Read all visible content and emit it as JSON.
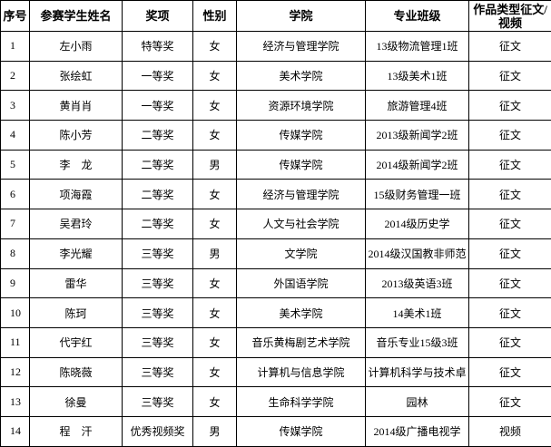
{
  "table": {
    "header": [
      "序号",
      "参赛学生姓名",
      "奖项",
      "性别",
      "学院",
      "专业班级",
      "作品类型征文/视频"
    ],
    "rows": [
      [
        "1",
        "左小雨",
        "特等奖",
        "女",
        "经济与管理学院",
        "13级物流管理1班",
        "征文"
      ],
      [
        "2",
        "张绘虹",
        "一等奖",
        "女",
        "美术学院",
        "13级美术1班",
        "征文"
      ],
      [
        "3",
        "黄肖肖",
        "一等奖",
        "女",
        "资源环境学院",
        "旅游管理4班",
        "征文"
      ],
      [
        "4",
        "陈小芳",
        "二等奖",
        "女",
        "传媒学院",
        "2013级新闻学2班",
        "征文"
      ],
      [
        "5",
        "李　龙",
        "二等奖",
        "男",
        "传媒学院",
        "2014级新闻学2班",
        "征文"
      ],
      [
        "6",
        "项海霞",
        "二等奖",
        "女",
        "经济与管理学院",
        "15级财务管理一班",
        "征文"
      ],
      [
        "7",
        "吴君玲",
        "二等奖",
        "女",
        "人文与社会学院",
        "2014级历史学",
        "征文"
      ],
      [
        "8",
        "李光耀",
        "三等奖",
        "男",
        "文学院",
        "2014级汉国教非师范",
        "征文"
      ],
      [
        "9",
        "雷华",
        "三等奖",
        "女",
        "外国语学院",
        "2013级英语3班",
        "征文"
      ],
      [
        "10",
        "陈珂",
        "三等奖",
        "女",
        "美术学院",
        "14美术1班",
        "征文"
      ],
      [
        "11",
        "代宇红",
        "三等奖",
        "女",
        "音乐黄梅剧艺术学院",
        "音乐专业15级3班",
        "征文"
      ],
      [
        "12",
        "陈晓薇",
        "三等奖",
        "女",
        "计算机与信息学院",
        "计算机科学与技术卓",
        "征文"
      ],
      [
        "13",
        "徐曼",
        "三等奖",
        "女",
        "生命科学学院",
        "园林",
        "征文"
      ],
      [
        "14",
        "程　汗",
        "优秀视频奖",
        "男",
        "传媒学院",
        "2014级广播电视学",
        "视频"
      ]
    ]
  }
}
